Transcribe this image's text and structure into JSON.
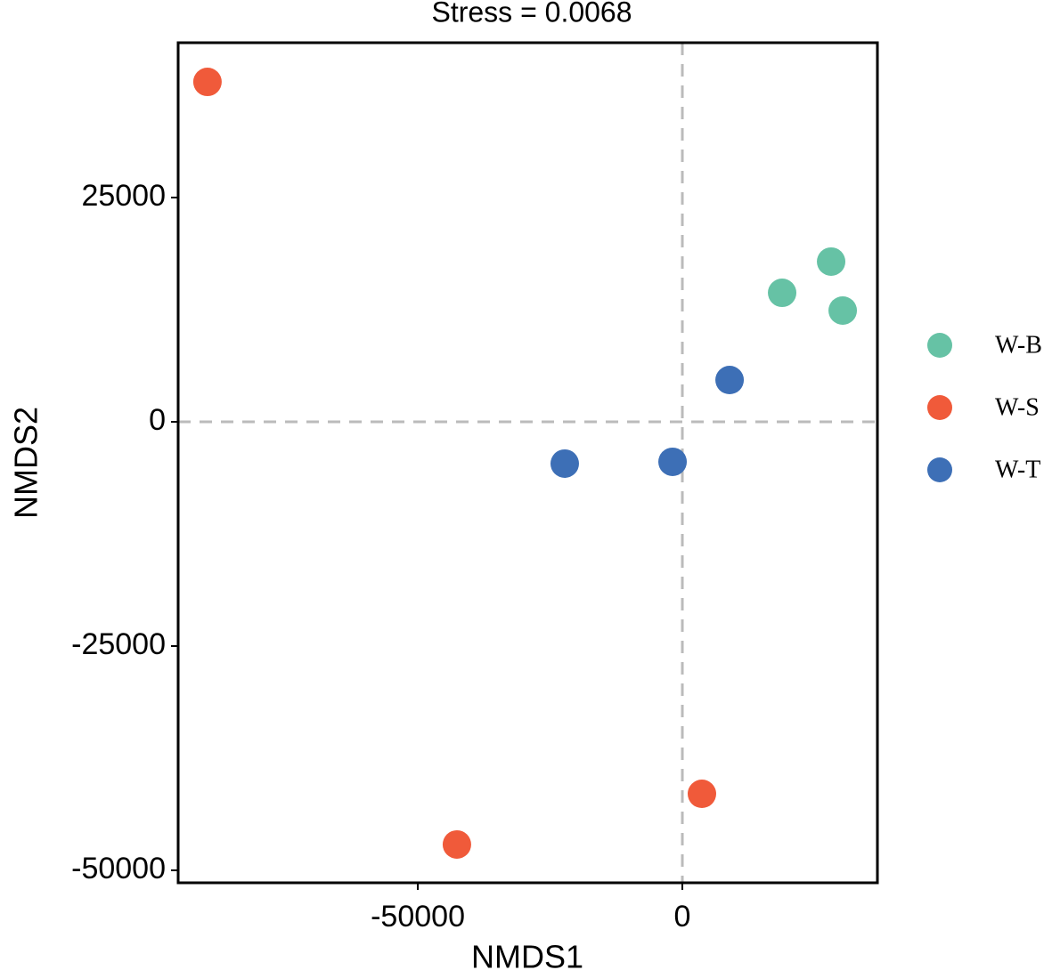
{
  "chart_data": {
    "type": "scatter",
    "title": "Stress = 0.0068",
    "x_label": "NMDS1",
    "y_label": "NMDS2",
    "xlim": [
      -95300,
      36870
    ],
    "ylim": [
      -51390,
      42260
    ],
    "xticks": [
      -50000,
      0
    ],
    "yticks": [
      -50000,
      -25000,
      0,
      25000
    ],
    "reference_lines": {
      "x": 0,
      "y": 0
    },
    "series": [
      {
        "name": "W-B",
        "color": "#66c2a5",
        "x": [
          18860,
          28120,
          30310
        ],
        "y": [
          14380,
          17860,
          12400
        ]
      },
      {
        "name": "W-S",
        "color": "#f05a3a",
        "x": [
          -89760,
          -42610,
          3700
        ],
        "y": [
          37890,
          -47120,
          -41470
        ]
      },
      {
        "name": "W-T",
        "color": "#3d6fb6",
        "x": [
          8930,
          -22230,
          -1850
        ],
        "y": [
          4660,
          -4660,
          -4460
        ]
      }
    ]
  }
}
